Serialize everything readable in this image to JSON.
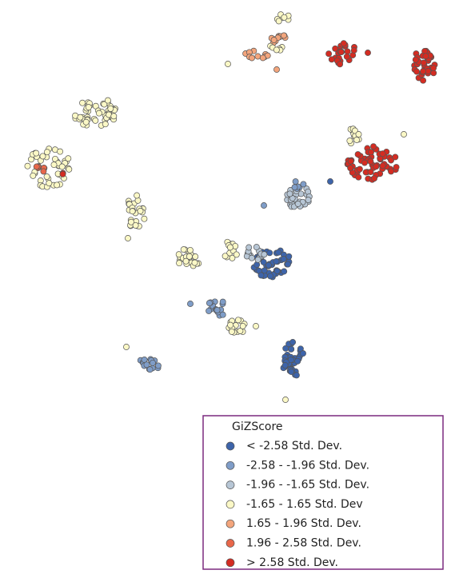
{
  "legend": {
    "title": "GiZScore",
    "items": [
      {
        "label": "< -2.58 Std. Dev.",
        "color": "#3d64aa"
      },
      {
        "label": "-2.58 - -1.96 Std. Dev.",
        "color": "#7f9dc8"
      },
      {
        "label": "-1.96 - -1.65 Std. Dev.",
        "color": "#b7c6d5"
      },
      {
        "label": "-1.65 - 1.65 Std. Dev",
        "color": "#fbf8c6"
      },
      {
        "label": "1.65 - 1.96 Std. Dev.",
        "color": "#f3a57c"
      },
      {
        "label": "1.96 - 2.58 Std. Dev.",
        "color": "#e8674a"
      },
      {
        "label": "> 2.58 Std. Dev.",
        "color": "#d42c22"
      }
    ]
  }
}
